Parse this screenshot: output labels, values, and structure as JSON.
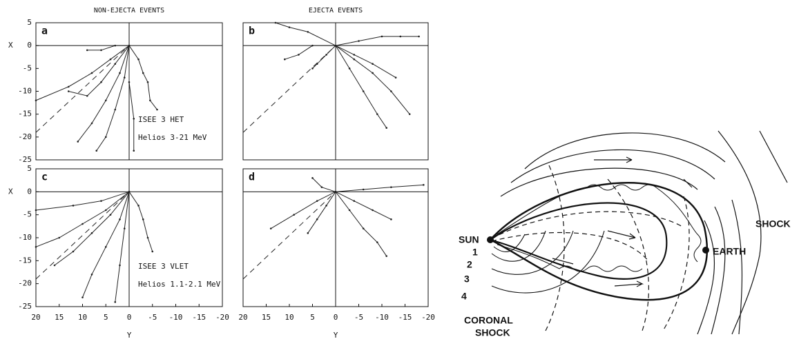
{
  "chart_data": [
    {
      "type": "line",
      "panel_label": "a",
      "title": "NON-EJECTA EVENTS",
      "ylabel": "X",
      "annotations": [
        "ISEE 3 HET",
        "Helios 3-21 MeV"
      ],
      "xlim": [
        20,
        -20
      ],
      "ylim": [
        -25,
        5
      ],
      "yticks": [
        5,
        0,
        -5,
        -10,
        -15,
        -20,
        -25
      ],
      "series": [
        {
          "color": "#222222",
          "dash": true,
          "x": [
            20,
            0
          ],
          "values": [
            -19,
            0
          ]
        },
        {
          "color": "#222222",
          "x": [
            0,
            4,
            8,
            13,
            20
          ],
          "values": [
            0,
            -3,
            -6,
            -9,
            -12
          ]
        },
        {
          "color": "#222222",
          "x": [
            0,
            3,
            6,
            9,
            13
          ],
          "values": [
            0,
            -4,
            -8,
            -11,
            -10
          ]
        },
        {
          "color": "#222222",
          "x": [
            0,
            2,
            5,
            8,
            11
          ],
          "values": [
            0,
            -6,
            -12,
            -17,
            -21
          ]
        },
        {
          "color": "#222222",
          "x": [
            0,
            1,
            3,
            5,
            7
          ],
          "values": [
            0,
            -7,
            -14,
            -20,
            -23
          ]
        },
        {
          "color": "#222222",
          "x": [
            0,
            0,
            -1,
            -1
          ],
          "values": [
            0,
            -8,
            -16,
            -23
          ]
        },
        {
          "color": "#222222",
          "x": [
            0,
            -2,
            -3,
            -4,
            -4.5,
            -6
          ],
          "values": [
            0,
            -3,
            -6,
            -8,
            -12,
            -14
          ]
        },
        {
          "color": "#222222",
          "x": [
            0,
            3,
            6,
            9
          ],
          "values": [
            0,
            0,
            -1,
            -1
          ]
        }
      ]
    },
    {
      "type": "line",
      "panel_label": "b",
      "title": "EJECTA EVENTS",
      "xlim": [
        20,
        -20
      ],
      "ylim": [
        -25,
        5
      ],
      "series": [
        {
          "color": "#222222",
          "dash": true,
          "x": [
            20,
            0
          ],
          "values": [
            -19,
            0
          ]
        },
        {
          "color": "#222222",
          "x": [
            0,
            5,
            8,
            11
          ],
          "values": [
            0,
            0,
            -2,
            -3
          ]
        },
        {
          "color": "#222222",
          "x": [
            0,
            6,
            10,
            13
          ],
          "values": [
            0,
            3,
            4,
            5
          ]
        },
        {
          "color": "#222222",
          "x": [
            0,
            -5,
            -10,
            -14,
            -18
          ],
          "values": [
            0,
            1,
            2,
            2,
            2
          ]
        },
        {
          "color": "#222222",
          "x": [
            0,
            -4,
            -8,
            -12,
            -16
          ],
          "values": [
            0,
            -3,
            -6,
            -10,
            -15
          ]
        },
        {
          "color": "#222222",
          "x": [
            0,
            -3,
            -6,
            -9,
            -11
          ],
          "values": [
            0,
            -5,
            -10,
            -15,
            -18
          ]
        },
        {
          "color": "#222222",
          "x": [
            0,
            -4,
            -8,
            -13
          ],
          "values": [
            0,
            -2,
            -4,
            -7
          ]
        },
        {
          "color": "#222222",
          "x": [
            0,
            2,
            4,
            5
          ],
          "values": [
            0,
            -2,
            -4,
            -5
          ]
        }
      ]
    },
    {
      "type": "line",
      "panel_label": "c",
      "xlabel": "Y",
      "ylabel": "X",
      "annotations": [
        "ISEE 3 VLET",
        "Helios 1.1-2.1 MeV"
      ],
      "xlim": [
        20,
        -20
      ],
      "ylim": [
        -25,
        5
      ],
      "xticks": [
        20,
        15,
        10,
        5,
        0,
        -5,
        -10,
        -15,
        -20
      ],
      "yticks": [
        5,
        0,
        -5,
        -10,
        -15,
        -20,
        -25
      ],
      "series": [
        {
          "color": "#222222",
          "dash": true,
          "x": [
            20,
            0
          ],
          "values": [
            -19,
            0
          ]
        },
        {
          "color": "#222222",
          "x": [
            0,
            5,
            10,
            15,
            20
          ],
          "values": [
            0,
            -4,
            -7,
            -10,
            -12
          ]
        },
        {
          "color": "#222222",
          "x": [
            0,
            4,
            8,
            12,
            16
          ],
          "values": [
            0,
            -5,
            -9,
            -13,
            -16
          ]
        },
        {
          "color": "#222222",
          "x": [
            0,
            2,
            5,
            8,
            10
          ],
          "values": [
            0,
            -6,
            -12,
            -18,
            -23
          ]
        },
        {
          "color": "#222222",
          "x": [
            0,
            1,
            2,
            3
          ],
          "values": [
            0,
            -8,
            -16,
            -24
          ]
        },
        {
          "color": "#222222",
          "x": [
            0,
            -2,
            -3,
            -4,
            -5
          ],
          "values": [
            0,
            -3,
            -6,
            -10,
            -13
          ]
        },
        {
          "color": "#222222",
          "x": [
            0,
            6,
            12,
            20
          ],
          "values": [
            0,
            -2,
            -3,
            -4
          ]
        }
      ]
    },
    {
      "type": "line",
      "panel_label": "d",
      "xlabel": "Y",
      "xlim": [
        20,
        -20
      ],
      "ylim": [
        -25,
        5
      ],
      "xticks": [
        20,
        15,
        10,
        5,
        0,
        -5,
        -10,
        -15,
        -20
      ],
      "series": [
        {
          "color": "#222222",
          "dash": true,
          "x": [
            20,
            0
          ],
          "values": [
            -19,
            0
          ]
        },
        {
          "color": "#222222",
          "x": [
            0,
            -6,
            -12,
            -19
          ],
          "values": [
            0,
            0.5,
            1,
            1.5
          ]
        },
        {
          "color": "#222222",
          "x": [
            0,
            4,
            9,
            14
          ],
          "values": [
            0,
            -2,
            -5,
            -8
          ]
        },
        {
          "color": "#222222",
          "x": [
            0,
            -4,
            -8,
            -12
          ],
          "values": [
            0,
            -2,
            -4,
            -6
          ]
        },
        {
          "color": "#222222",
          "x": [
            0,
            -3,
            -6,
            -9,
            -11
          ],
          "values": [
            0,
            -4,
            -8,
            -11,
            -14
          ]
        },
        {
          "color": "#222222",
          "x": [
            0,
            2,
            4,
            6
          ],
          "values": [
            0,
            -3,
            -6,
            -9
          ]
        },
        {
          "color": "#222222",
          "x": [
            0,
            3,
            5
          ],
          "values": [
            0,
            1,
            3
          ]
        }
      ]
    }
  ],
  "diagram": {
    "sun": "SUN",
    "earth": "EARTH",
    "shock": "SHOCK",
    "shock_numbers": [
      "1",
      "2",
      "3",
      "4"
    ],
    "coronal_shock": [
      "CORONAL",
      "SHOCK"
    ]
  }
}
